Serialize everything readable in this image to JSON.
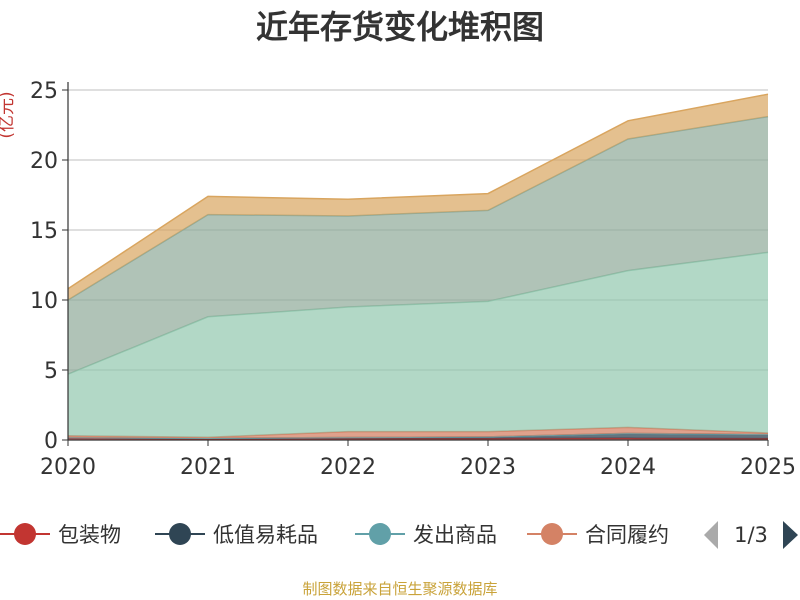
{
  "chart_data": {
    "type": "area",
    "stacked": true,
    "title": "近年存货变化堆积图",
    "y_unit": "亿元",
    "x": [
      "2020",
      "2021",
      "2022",
      "2023",
      "2024",
      "2025"
    ],
    "ylim": [
      0,
      25
    ],
    "yticks": [
      "0",
      "5",
      "10",
      "15",
      "20",
      "25"
    ],
    "grid": true,
    "series": [
      {
        "name": "包装物",
        "color": "#c23531",
        "values": [
          0.12,
          0.08,
          0.1,
          0.1,
          0.12,
          0.1
        ]
      },
      {
        "name": "低值易耗品",
        "color": "#2f4554",
        "values": [
          0.05,
          0.04,
          0.08,
          0.12,
          0.35,
          0.3
        ]
      },
      {
        "name": "发出商品",
        "color": "#61a0a8",
        "values": [
          0.0,
          0.0,
          0.0,
          0.0,
          0.0,
          0.0
        ]
      },
      {
        "name": "合同履约",
        "color": "#d48265",
        "values": [
          0.13,
          0.08,
          0.42,
          0.38,
          0.43,
          0.1
        ]
      },
      {
        "name": "",
        "color": "#91c7ae",
        "values": [
          4.4,
          8.6,
          8.9,
          9.3,
          11.2,
          12.9
        ]
      },
      {
        "name": "",
        "color": "#8fa998",
        "values": [
          5.3,
          7.3,
          6.5,
          6.5,
          9.4,
          9.7
        ]
      },
      {
        "name": "",
        "color": "#d9a55f",
        "values": [
          0.8,
          1.3,
          1.2,
          1.2,
          1.3,
          1.6
        ]
      }
    ],
    "legend": {
      "position": "bottom",
      "visible_entries": [
        "包装物",
        "低值易耗品",
        "发出商品",
        "合同履约"
      ],
      "page": "1/3"
    },
    "source": "制图数据来自恒生聚源数据库"
  }
}
